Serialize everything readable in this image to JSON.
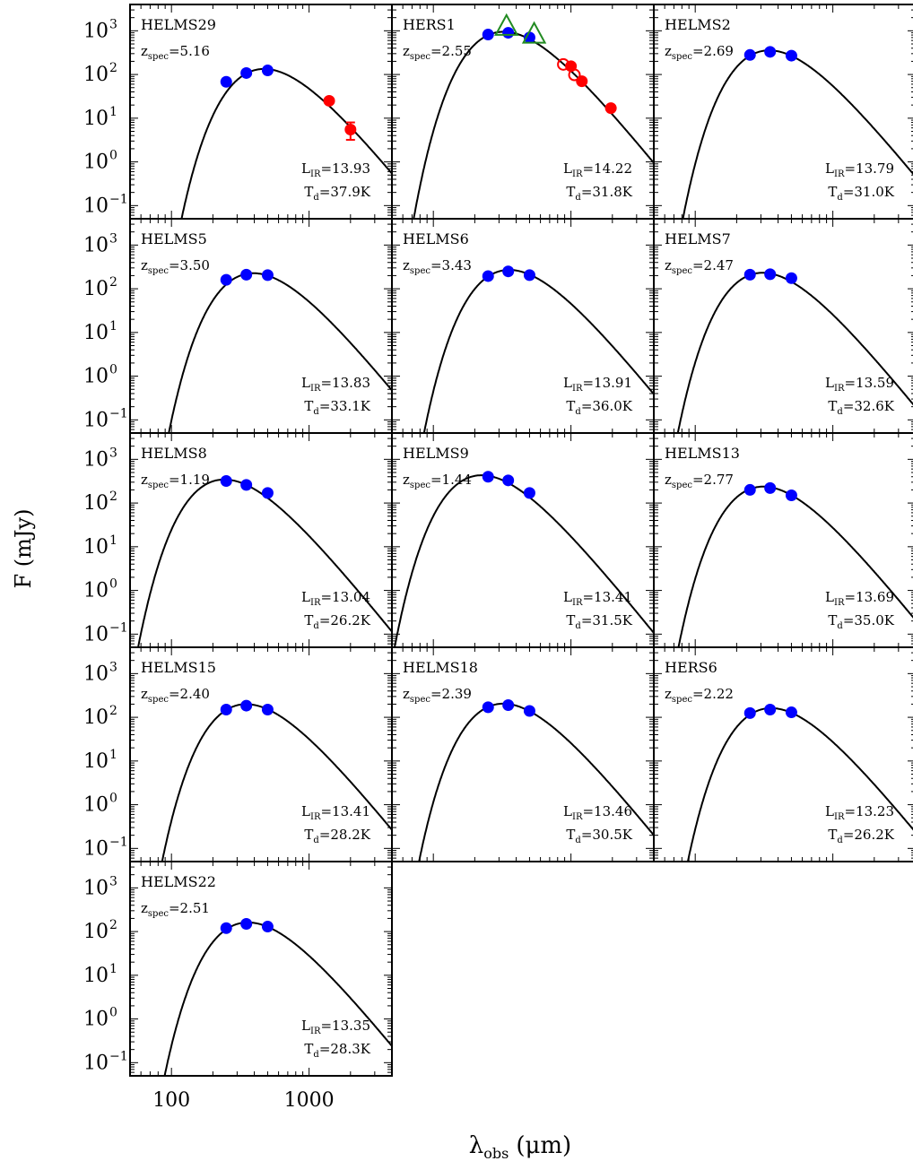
{
  "figure": {
    "ylabel": "F (mJy)",
    "xlabel_main": "λ",
    "xlabel_sub": "obs",
    "xlabel_unit": "(μm)"
  },
  "axes": {
    "x_scale": "log",
    "y_scale": "log",
    "xlim": [
      50,
      4000
    ],
    "ylim": [
      0.05,
      4000
    ],
    "x_ticks": [
      {
        "value": 100,
        "label": "100"
      },
      {
        "value": 1000,
        "label": "1000"
      }
    ],
    "y_ticks": [
      {
        "value": 1000,
        "base": "10",
        "exp": "3"
      },
      {
        "value": 100,
        "base": "10",
        "exp": "2"
      },
      {
        "value": 10,
        "base": "10",
        "exp": "1"
      },
      {
        "value": 1,
        "base": "10",
        "exp": "0"
      },
      {
        "value": 0.1,
        "base": "10",
        "exp": "−1"
      }
    ]
  },
  "colors": {
    "spire_points": "#0000ff",
    "mm_points": "#ff0000",
    "triangles": "#228b22",
    "model_curve": "#000000"
  },
  "chart_data": {
    "type": "scatter",
    "x_unit": "μm",
    "y_unit": "mJy",
    "panels": [
      {
        "name": "HELMS29",
        "z": "5.16",
        "lir": "13.93",
        "td": "37.9K",
        "points": [
          {
            "x": 250,
            "y": 68,
            "kind": "blue"
          },
          {
            "x": 350,
            "y": 108,
            "kind": "blue"
          },
          {
            "x": 500,
            "y": 124,
            "kind": "blue"
          },
          {
            "x": 1400,
            "y": 25,
            "kind": "red"
          },
          {
            "x": 2000,
            "y": 5.5,
            "err": [
              3.2,
              8.0
            ],
            "kind": "red"
          }
        ]
      },
      {
        "name": "HERS1",
        "z": "2.55",
        "lir": "14.22",
        "td": "31.8K",
        "points": [
          {
            "x": 250,
            "y": 820,
            "kind": "blue"
          },
          {
            "x": 350,
            "y": 900,
            "kind": "blue"
          },
          {
            "x": 500,
            "y": 700,
            "kind": "blue"
          },
          {
            "x": 880,
            "y": 170,
            "kind": "red-open"
          },
          {
            "x": 1000,
            "y": 155,
            "kind": "red"
          },
          {
            "x": 1060,
            "y": 98,
            "kind": "red-open"
          },
          {
            "x": 1200,
            "y": 70,
            "kind": "red"
          },
          {
            "x": 1950,
            "y": 17,
            "kind": "red"
          },
          {
            "x": 340,
            "y": 1180,
            "kind": "triangle"
          },
          {
            "x": 540,
            "y": 780,
            "kind": "triangle"
          }
        ]
      },
      {
        "name": "HELMS2",
        "z": "2.69",
        "lir": "13.79",
        "td": "31.0K",
        "points": [
          {
            "x": 250,
            "y": 280,
            "kind": "blue"
          },
          {
            "x": 350,
            "y": 330,
            "kind": "blue"
          },
          {
            "x": 500,
            "y": 270,
            "kind": "blue"
          }
        ]
      },
      {
        "name": "HELMS5",
        "z": "3.50",
        "lir": "13.83",
        "td": "33.1K",
        "points": [
          {
            "x": 250,
            "y": 160,
            "kind": "blue"
          },
          {
            "x": 350,
            "y": 210,
            "kind": "blue"
          },
          {
            "x": 500,
            "y": 205,
            "kind": "blue"
          }
        ]
      },
      {
        "name": "HELMS6",
        "z": "3.43",
        "lir": "13.91",
        "td": "36.0K",
        "points": [
          {
            "x": 250,
            "y": 195,
            "kind": "blue"
          },
          {
            "x": 350,
            "y": 250,
            "kind": "blue"
          },
          {
            "x": 500,
            "y": 205,
            "kind": "blue"
          }
        ]
      },
      {
        "name": "HELMS7",
        "z": "2.47",
        "lir": "13.59",
        "td": "32.6K",
        "points": [
          {
            "x": 250,
            "y": 210,
            "kind": "blue"
          },
          {
            "x": 350,
            "y": 215,
            "kind": "blue"
          },
          {
            "x": 500,
            "y": 175,
            "kind": "blue"
          }
        ]
      },
      {
        "name": "HELMS8",
        "z": "1.19",
        "lir": "13.04",
        "td": "26.2K",
        "points": [
          {
            "x": 250,
            "y": 320,
            "kind": "blue"
          },
          {
            "x": 350,
            "y": 260,
            "kind": "blue"
          },
          {
            "x": 500,
            "y": 170,
            "kind": "blue"
          }
        ]
      },
      {
        "name": "HELMS9",
        "z": "1.44",
        "lir": "13.41",
        "td": "31.5K",
        "points": [
          {
            "x": 250,
            "y": 400,
            "kind": "blue"
          },
          {
            "x": 350,
            "y": 330,
            "kind": "blue"
          },
          {
            "x": 500,
            "y": 170,
            "kind": "blue"
          }
        ]
      },
      {
        "name": "HELMS13",
        "z": "2.77",
        "lir": "13.69",
        "td": "35.0K",
        "points": [
          {
            "x": 250,
            "y": 200,
            "kind": "blue"
          },
          {
            "x": 350,
            "y": 220,
            "kind": "blue"
          },
          {
            "x": 500,
            "y": 150,
            "kind": "blue"
          }
        ]
      },
      {
        "name": "HELMS15",
        "z": "2.40",
        "lir": "13.41",
        "td": "28.2K",
        "points": [
          {
            "x": 250,
            "y": 150,
            "kind": "blue"
          },
          {
            "x": 350,
            "y": 185,
            "kind": "blue"
          },
          {
            "x": 500,
            "y": 150,
            "kind": "blue"
          }
        ]
      },
      {
        "name": "HELMS18",
        "z": "2.39",
        "lir": "13.46",
        "td": "30.5K",
        "points": [
          {
            "x": 250,
            "y": 170,
            "kind": "blue"
          },
          {
            "x": 350,
            "y": 190,
            "kind": "blue"
          },
          {
            "x": 500,
            "y": 140,
            "kind": "blue"
          }
        ]
      },
      {
        "name": "HERS6",
        "z": "2.22",
        "lir": "13.23",
        "td": "26.2K",
        "points": [
          {
            "x": 250,
            "y": 125,
            "kind": "blue"
          },
          {
            "x": 350,
            "y": 150,
            "kind": "blue"
          },
          {
            "x": 500,
            "y": 130,
            "kind": "blue"
          }
        ]
      },
      {
        "name": "HELMS22",
        "z": "2.51",
        "lir": "13.35",
        "td": "28.3K",
        "points": [
          {
            "x": 250,
            "y": 120,
            "kind": "blue"
          },
          {
            "x": 350,
            "y": 150,
            "kind": "blue"
          },
          {
            "x": 500,
            "y": 130,
            "kind": "blue"
          }
        ]
      }
    ]
  }
}
